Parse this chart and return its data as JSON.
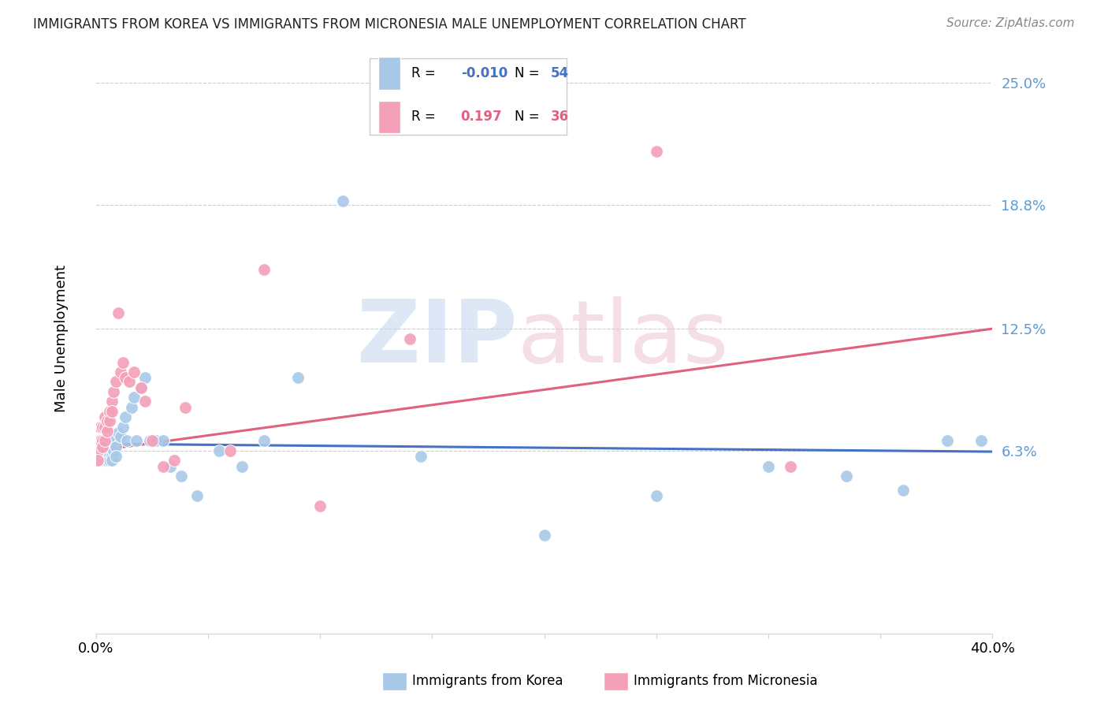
{
  "title": "IMMIGRANTS FROM KOREA VS IMMIGRANTS FROM MICRONESIA MALE UNEMPLOYMENT CORRELATION CHART",
  "source": "Source: ZipAtlas.com",
  "ylabel": "Male Unemployment",
  "ytick_labels": [
    "25.0%",
    "18.8%",
    "12.5%",
    "6.3%"
  ],
  "ytick_values": [
    0.25,
    0.188,
    0.125,
    0.063
  ],
  "xmin": 0.0,
  "xmax": 0.4,
  "ymin": -0.03,
  "ymax": 0.27,
  "legend_korea_r": "-0.010",
  "legend_korea_n": "54",
  "legend_micronesia_r": "0.197",
  "legend_micronesia_n": "36",
  "color_korea": "#A8C8E8",
  "color_micronesia": "#F4A0B8",
  "color_korea_line": "#4472C4",
  "color_micronesia_line": "#E06080",
  "korea_x": [
    0.001,
    0.001,
    0.002,
    0.002,
    0.002,
    0.003,
    0.003,
    0.003,
    0.004,
    0.004,
    0.004,
    0.005,
    0.005,
    0.005,
    0.005,
    0.006,
    0.006,
    0.006,
    0.007,
    0.007,
    0.007,
    0.008,
    0.008,
    0.009,
    0.009,
    0.01,
    0.011,
    0.012,
    0.013,
    0.014,
    0.016,
    0.017,
    0.018,
    0.02,
    0.022,
    0.024,
    0.027,
    0.03,
    0.033,
    0.038,
    0.045,
    0.055,
    0.065,
    0.075,
    0.09,
    0.11,
    0.145,
    0.2,
    0.25,
    0.3,
    0.335,
    0.36,
    0.38,
    0.395
  ],
  "korea_y": [
    0.063,
    0.06,
    0.063,
    0.06,
    0.058,
    0.063,
    0.06,
    0.058,
    0.063,
    0.06,
    0.058,
    0.063,
    0.06,
    0.058,
    0.062,
    0.063,
    0.06,
    0.058,
    0.063,
    0.06,
    0.058,
    0.068,
    0.063,
    0.065,
    0.06,
    0.072,
    0.07,
    0.075,
    0.08,
    0.068,
    0.085,
    0.09,
    0.068,
    0.095,
    0.1,
    0.068,
    0.068,
    0.068,
    0.055,
    0.05,
    0.04,
    0.063,
    0.055,
    0.068,
    0.1,
    0.19,
    0.06,
    0.02,
    0.04,
    0.055,
    0.05,
    0.043,
    0.068,
    0.068
  ],
  "micronesia_x": [
    0.001,
    0.001,
    0.002,
    0.002,
    0.003,
    0.003,
    0.003,
    0.004,
    0.004,
    0.004,
    0.005,
    0.005,
    0.006,
    0.006,
    0.007,
    0.007,
    0.008,
    0.009,
    0.01,
    0.011,
    0.012,
    0.013,
    0.015,
    0.017,
    0.02,
    0.022,
    0.025,
    0.03,
    0.035,
    0.04,
    0.06,
    0.075,
    0.1,
    0.14,
    0.25,
    0.31
  ],
  "micronesia_y": [
    0.063,
    0.058,
    0.075,
    0.068,
    0.075,
    0.068,
    0.065,
    0.08,
    0.075,
    0.068,
    0.078,
    0.073,
    0.083,
    0.078,
    0.088,
    0.083,
    0.093,
    0.098,
    0.133,
    0.103,
    0.108,
    0.1,
    0.098,
    0.103,
    0.095,
    0.088,
    0.068,
    0.055,
    0.058,
    0.085,
    0.063,
    0.155,
    0.035,
    0.12,
    0.215,
    0.055
  ],
  "korea_line_x": [
    0.0,
    0.4
  ],
  "korea_line_y": [
    0.0665,
    0.0625
  ],
  "micronesia_line_x": [
    0.0,
    0.4
  ],
  "micronesia_line_y": [
    0.063,
    0.125
  ]
}
